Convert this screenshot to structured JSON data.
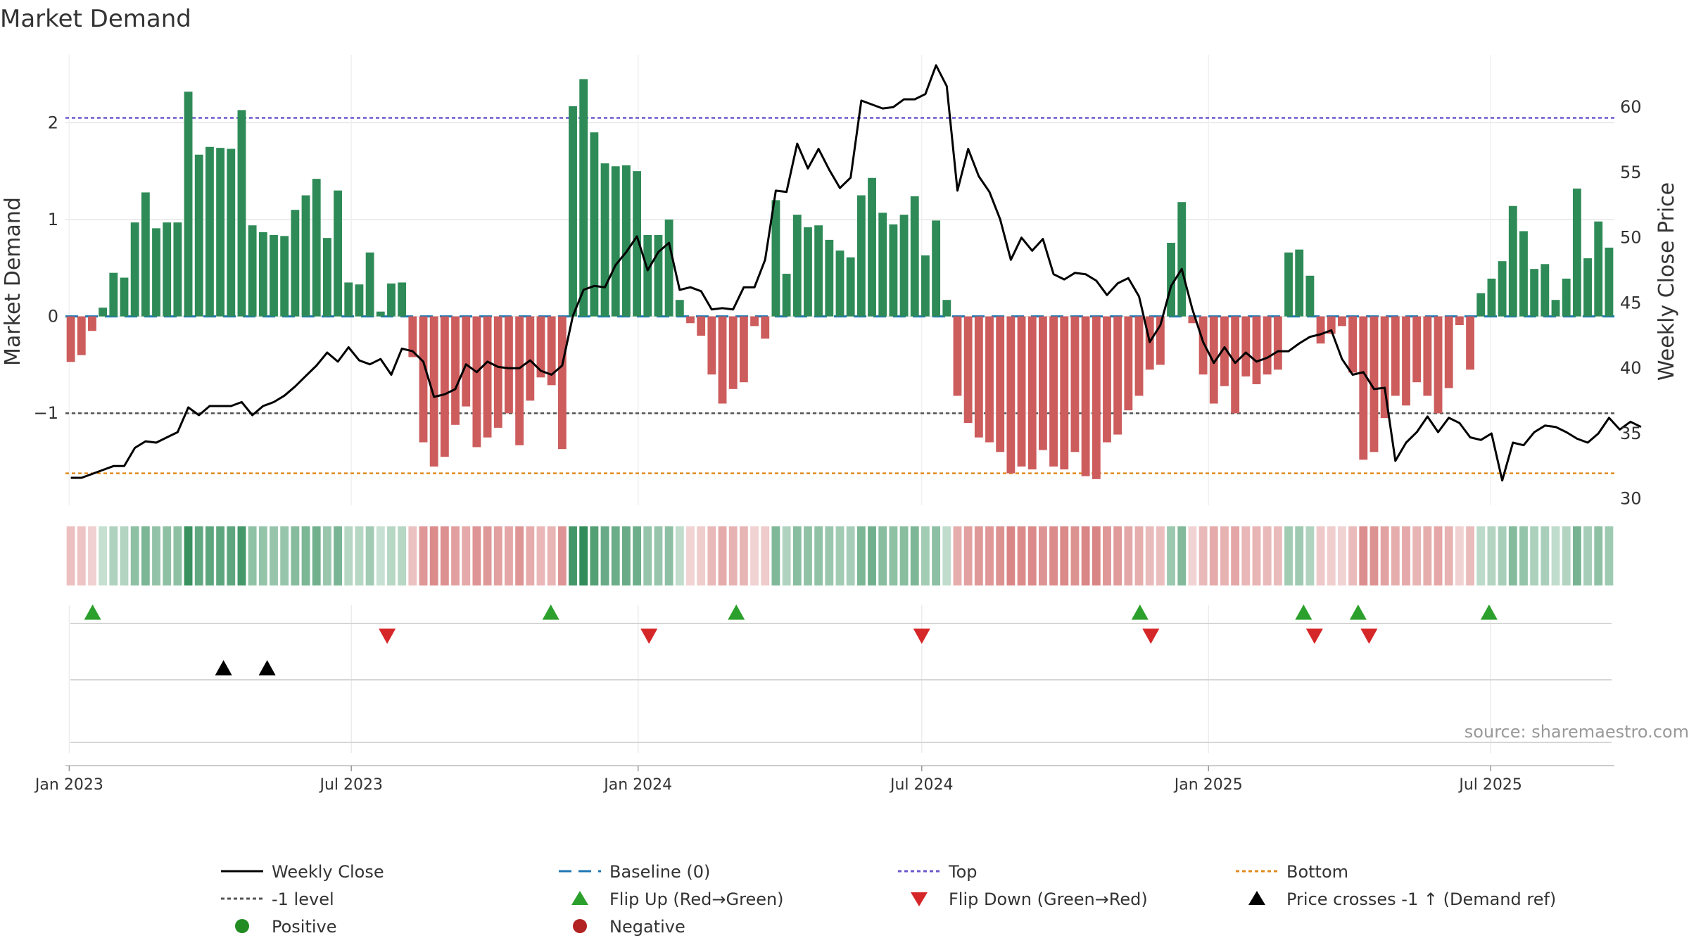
{
  "chart_data": {
    "type": "bar",
    "title": "Market Demand",
    "ylabel_left": "Market Demand",
    "ylabel_right": "Weekly Close Price",
    "source": "source: sharemaestro.com",
    "left_axis": {
      "ylim": [
        -1.95,
        2.7
      ],
      "ticks": [
        2,
        1,
        0,
        -1
      ],
      "tick_labels": [
        "2",
        "1",
        "0",
        "−1"
      ]
    },
    "right_axis": {
      "ylim": [
        29.5,
        64
      ],
      "ticks": [
        60,
        55,
        50,
        45,
        40,
        35,
        30
      ],
      "tick_labels": [
        "60",
        "55",
        "50",
        "45",
        "40",
        "35",
        "30"
      ]
    },
    "x_start": "2023-01-02",
    "x_end": "2025-09-15",
    "x_ticks": [
      {
        "date": "2023-01-01",
        "label": "Jan 2023"
      },
      {
        "date": "2023-07-01",
        "label": "Jul 2023"
      },
      {
        "date": "2024-01-01",
        "label": "Jan 2024"
      },
      {
        "date": "2024-07-01",
        "label": "Jul 2024"
      },
      {
        "date": "2025-01-01",
        "label": "Jan 2025"
      },
      {
        "date": "2025-07-01",
        "label": "Jul 2025"
      }
    ],
    "reference_lines": {
      "top": 2.05,
      "level_minus1": -1.0,
      "bottom": -1.62,
      "baseline": 0
    },
    "colors": {
      "positive": "#2e8b57",
      "negative": "#cd5c5c",
      "close": "#000000",
      "baseline": "#1f77b4",
      "top": "#6a5acd",
      "level": "#555555",
      "bottom": "#e08a1e",
      "flip_up": "#2ca02c",
      "flip_down": "#d62728",
      "cross": "#000000",
      "legend_positive": "#228b22",
      "legend_negative": "#b22222"
    },
    "demand": [
      -0.47,
      -0.4,
      -0.15,
      0.09,
      0.45,
      0.4,
      0.97,
      1.28,
      0.91,
      0.97,
      0.97,
      2.32,
      1.67,
      1.75,
      1.74,
      1.73,
      2.13,
      0.94,
      0.87,
      0.84,
      0.83,
      1.1,
      1.25,
      1.42,
      0.81,
      1.3,
      0.35,
      0.33,
      0.66,
      0.05,
      0.34,
      0.35,
      -0.42,
      -1.3,
      -1.55,
      -1.45,
      -1.12,
      -0.93,
      -1.35,
      -1.25,
      -1.15,
      -1.0,
      -1.33,
      -0.87,
      -0.63,
      -0.71,
      -1.37,
      2.17,
      2.45,
      1.9,
      1.58,
      1.55,
      1.56,
      1.5,
      0.84,
      0.84,
      1.0,
      0.17,
      -0.07,
      -0.2,
      -0.6,
      -0.9,
      -0.75,
      -0.68,
      -0.1,
      -0.23,
      1.2,
      0.44,
      1.05,
      0.92,
      0.94,
      0.79,
      0.68,
      0.61,
      1.25,
      1.43,
      1.07,
      0.95,
      1.05,
      1.24,
      0.63,
      0.99,
      0.17,
      -0.82,
      -1.1,
      -1.25,
      -1.3,
      -1.4,
      -1.62,
      -1.55,
      -1.58,
      -1.38,
      -1.55,
      -1.58,
      -1.4,
      -1.65,
      -1.68,
      -1.3,
      -1.22,
      -0.97,
      -0.82,
      -0.55,
      -0.5,
      0.76,
      1.18,
      -0.07,
      -0.6,
      -0.9,
      -0.72,
      -1.0,
      -0.62,
      -0.7,
      -0.6,
      -0.55,
      0.66,
      0.69,
      0.42,
      -0.28,
      -0.18,
      -0.1,
      -0.58,
      -1.48,
      -1.4,
      -1.05,
      -0.82,
      -0.92,
      -0.68,
      -0.82,
      -1.0,
      -0.74,
      -0.09,
      -0.55,
      0.24,
      0.39,
      0.57,
      1.14,
      0.88,
      0.49,
      0.54,
      0.17,
      0.39,
      1.32,
      0.6,
      0.98,
      0.71
    ],
    "weekly_close": [
      31.6,
      31.6,
      31.9,
      32.2,
      32.5,
      32.5,
      33.9,
      34.4,
      34.3,
      34.7,
      35.1,
      37.0,
      36.4,
      37.1,
      37.1,
      37.1,
      37.4,
      36.4,
      37.1,
      37.4,
      37.9,
      38.6,
      39.4,
      40.2,
      41.2,
      40.5,
      41.6,
      40.6,
      40.3,
      40.7,
      39.5,
      41.5,
      41.3,
      40.5,
      37.8,
      38.0,
      38.4,
      40.3,
      39.7,
      40.5,
      40.1,
      40.0,
      40.0,
      40.6,
      39.8,
      39.5,
      40.2,
      44.0,
      46.0,
      46.3,
      46.2,
      47.9,
      48.9,
      50.1,
      47.5,
      48.9,
      49.6,
      46.0,
      46.2,
      45.9,
      44.5,
      44.6,
      44.5,
      46.2,
      46.2,
      48.3,
      53.6,
      53.5,
      57.2,
      55.3,
      56.8,
      55.2,
      53.8,
      54.6,
      60.5,
      60.2,
      59.9,
      60.0,
      60.6,
      60.6,
      61.0,
      63.2,
      61.6,
      53.6,
      56.8,
      54.7,
      53.5,
      51.4,
      48.3,
      50.0,
      49.0,
      49.9,
      47.2,
      46.8,
      47.3,
      47.2,
      46.7,
      45.6,
      46.5,
      46.9,
      45.5,
      42.0,
      43.3,
      46.3,
      47.6,
      44.5,
      42.0,
      40.4,
      41.6,
      40.4,
      41.2,
      40.5,
      40.8,
      41.3,
      41.3,
      41.9,
      42.4,
      42.6,
      42.9,
      40.7,
      39.5,
      39.7,
      38.4,
      38.5,
      32.9,
      34.3,
      35.1,
      36.3,
      35.1,
      36.2,
      35.8,
      34.7,
      34.5,
      35.0,
      31.4,
      34.3,
      34.1,
      35.1,
      35.6,
      35.5,
      35.1,
      34.6,
      34.3,
      35.0,
      36.2,
      35.3,
      35.9,
      35.5
    ],
    "flip_up": [
      "2023-01-16",
      "2023-11-06",
      "2024-03-04",
      "2024-11-18",
      "2025-03-03",
      "2025-04-07",
      "2025-06-30"
    ],
    "flip_down": [
      "2023-07-24",
      "2024-01-08",
      "2024-07-01",
      "2024-11-25",
      "2025-03-10",
      "2025-04-14"
    ],
    "price_crosses": [
      "2023-04-10",
      "2023-05-08"
    ],
    "legend": [
      {
        "key": "close",
        "label": "Weekly Close",
        "marker": "line-solid"
      },
      {
        "key": "baseline",
        "label": "Baseline (0)",
        "marker": "line-dash"
      },
      {
        "key": "top",
        "label": "Top",
        "marker": "line-dot"
      },
      {
        "key": "bottom",
        "label": "Bottom",
        "marker": "line-dot"
      },
      {
        "key": "level",
        "label": "-1 level",
        "marker": "line-dot"
      },
      {
        "key": "flip_up",
        "label": "Flip Up (Red→Green)",
        "marker": "triangle-up"
      },
      {
        "key": "flip_down",
        "label": "Flip Down (Green→Red)",
        "marker": "triangle-down"
      },
      {
        "key": "cross",
        "label": "Price crosses -1 ↑ (Demand ref)",
        "marker": "triangle-up"
      },
      {
        "key": "legend_positive",
        "label": "Positive",
        "marker": "circle"
      },
      {
        "key": "legend_negative",
        "label": "Negative",
        "marker": "circle"
      }
    ]
  }
}
